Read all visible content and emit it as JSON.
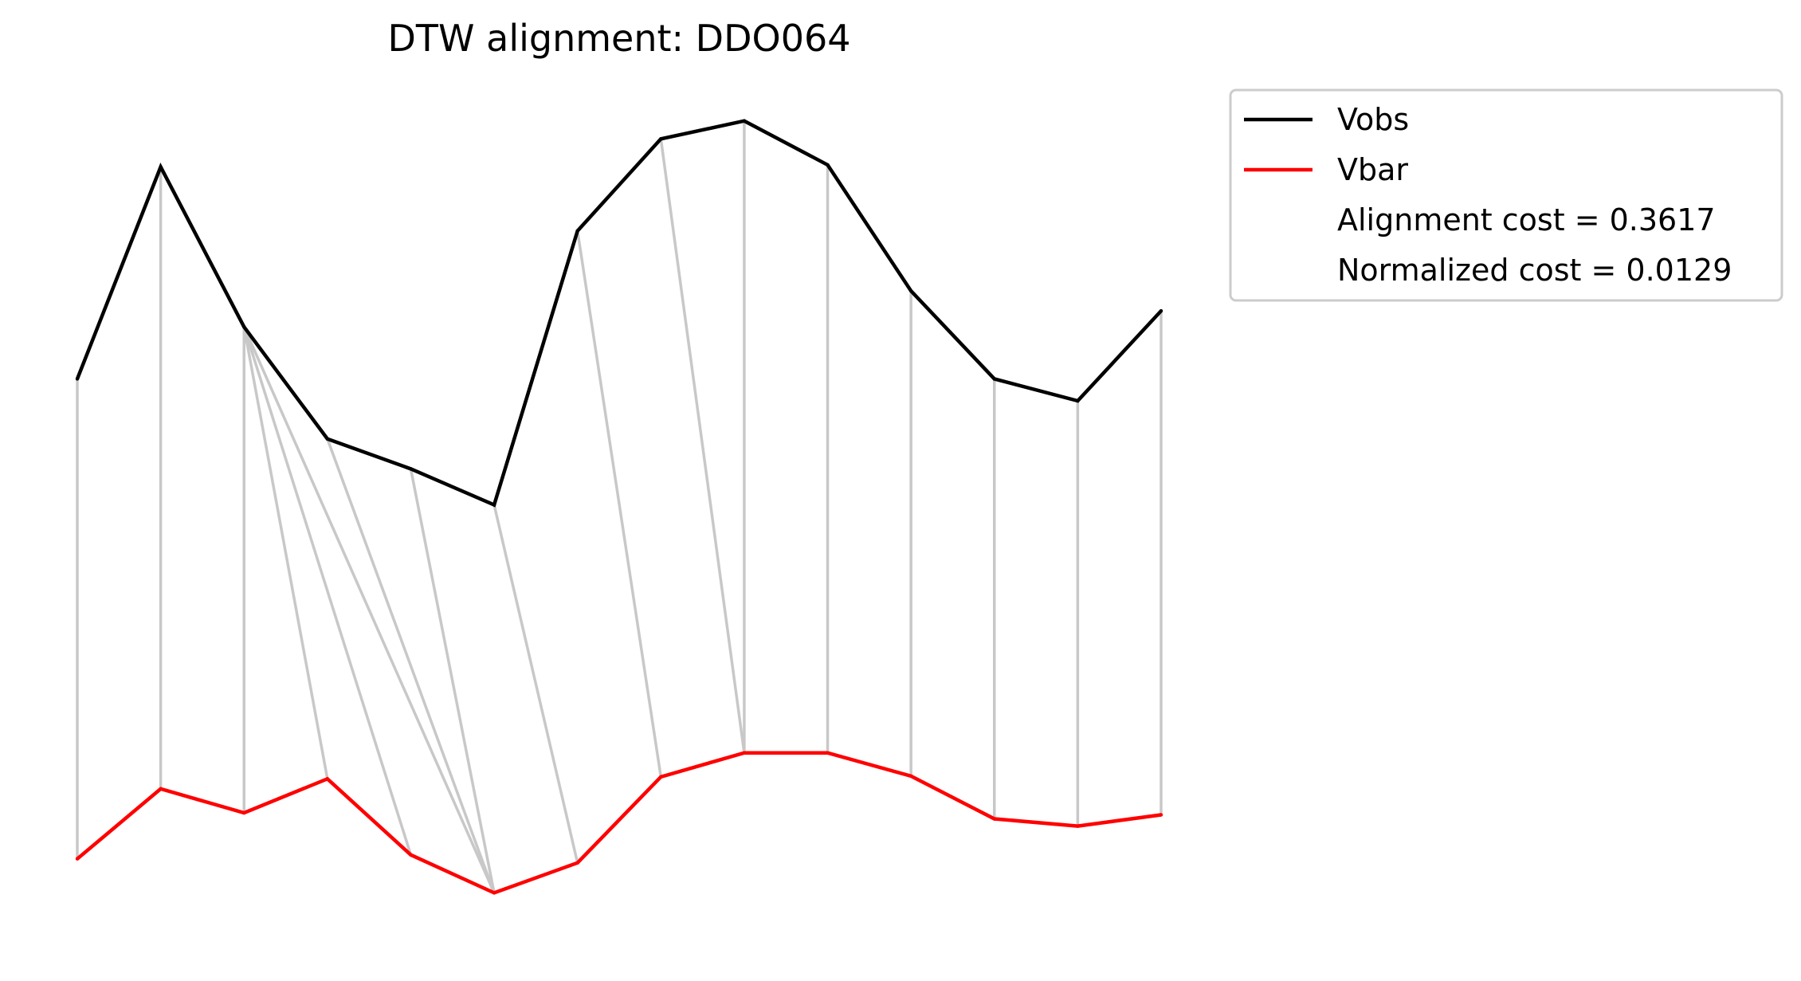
{
  "chart_data": {
    "type": "line",
    "title": "DTW alignment: DDO064",
    "xlabel": "",
    "ylabel": "",
    "x": [
      0,
      1,
      2,
      3,
      4,
      5,
      6,
      7,
      8,
      9,
      10,
      11,
      12,
      13
    ],
    "series": [
      {
        "name": "Vobs",
        "color": "#000000",
        "values": [
          0.3,
          0.83,
          0.43,
          0.15,
          0.075,
          -0.015,
          0.67,
          0.9,
          0.945,
          0.835,
          0.52,
          0.3,
          0.245,
          0.47
        ]
      },
      {
        "name": "Vbar",
        "color": "#ff0000",
        "values": [
          -0.9,
          -0.725,
          -0.785,
          -0.7,
          -0.89,
          -0.985,
          -0.91,
          -0.695,
          -0.635,
          -0.635,
          -0.693,
          -0.8,
          -0.818,
          -0.79
        ]
      }
    ],
    "alignment": {
      "color": "#c8c8c8",
      "pairs": [
        [
          0,
          0
        ],
        [
          1,
          1
        ],
        [
          2,
          2
        ],
        [
          2,
          3
        ],
        [
          2,
          4
        ],
        [
          2,
          5
        ],
        [
          3,
          5
        ],
        [
          4,
          5
        ],
        [
          5,
          6
        ],
        [
          6,
          7
        ],
        [
          7,
          8
        ],
        [
          8,
          8
        ],
        [
          9,
          9
        ],
        [
          10,
          10
        ],
        [
          11,
          11
        ],
        [
          12,
          12
        ],
        [
          13,
          13
        ]
      ]
    },
    "legend": {
      "position": "outside-right",
      "entries": [
        {
          "label": "Vobs",
          "color": "#000000"
        },
        {
          "label": "Vbar",
          "color": "#ff0000"
        },
        {
          "label": "Alignment cost = 0.3617",
          "color": null
        },
        {
          "label": "Normalized cost = 0.0129",
          "color": null
        }
      ]
    },
    "ylim": [
      -1.05,
      1.05
    ],
    "grid": false,
    "axes_visible": false
  }
}
